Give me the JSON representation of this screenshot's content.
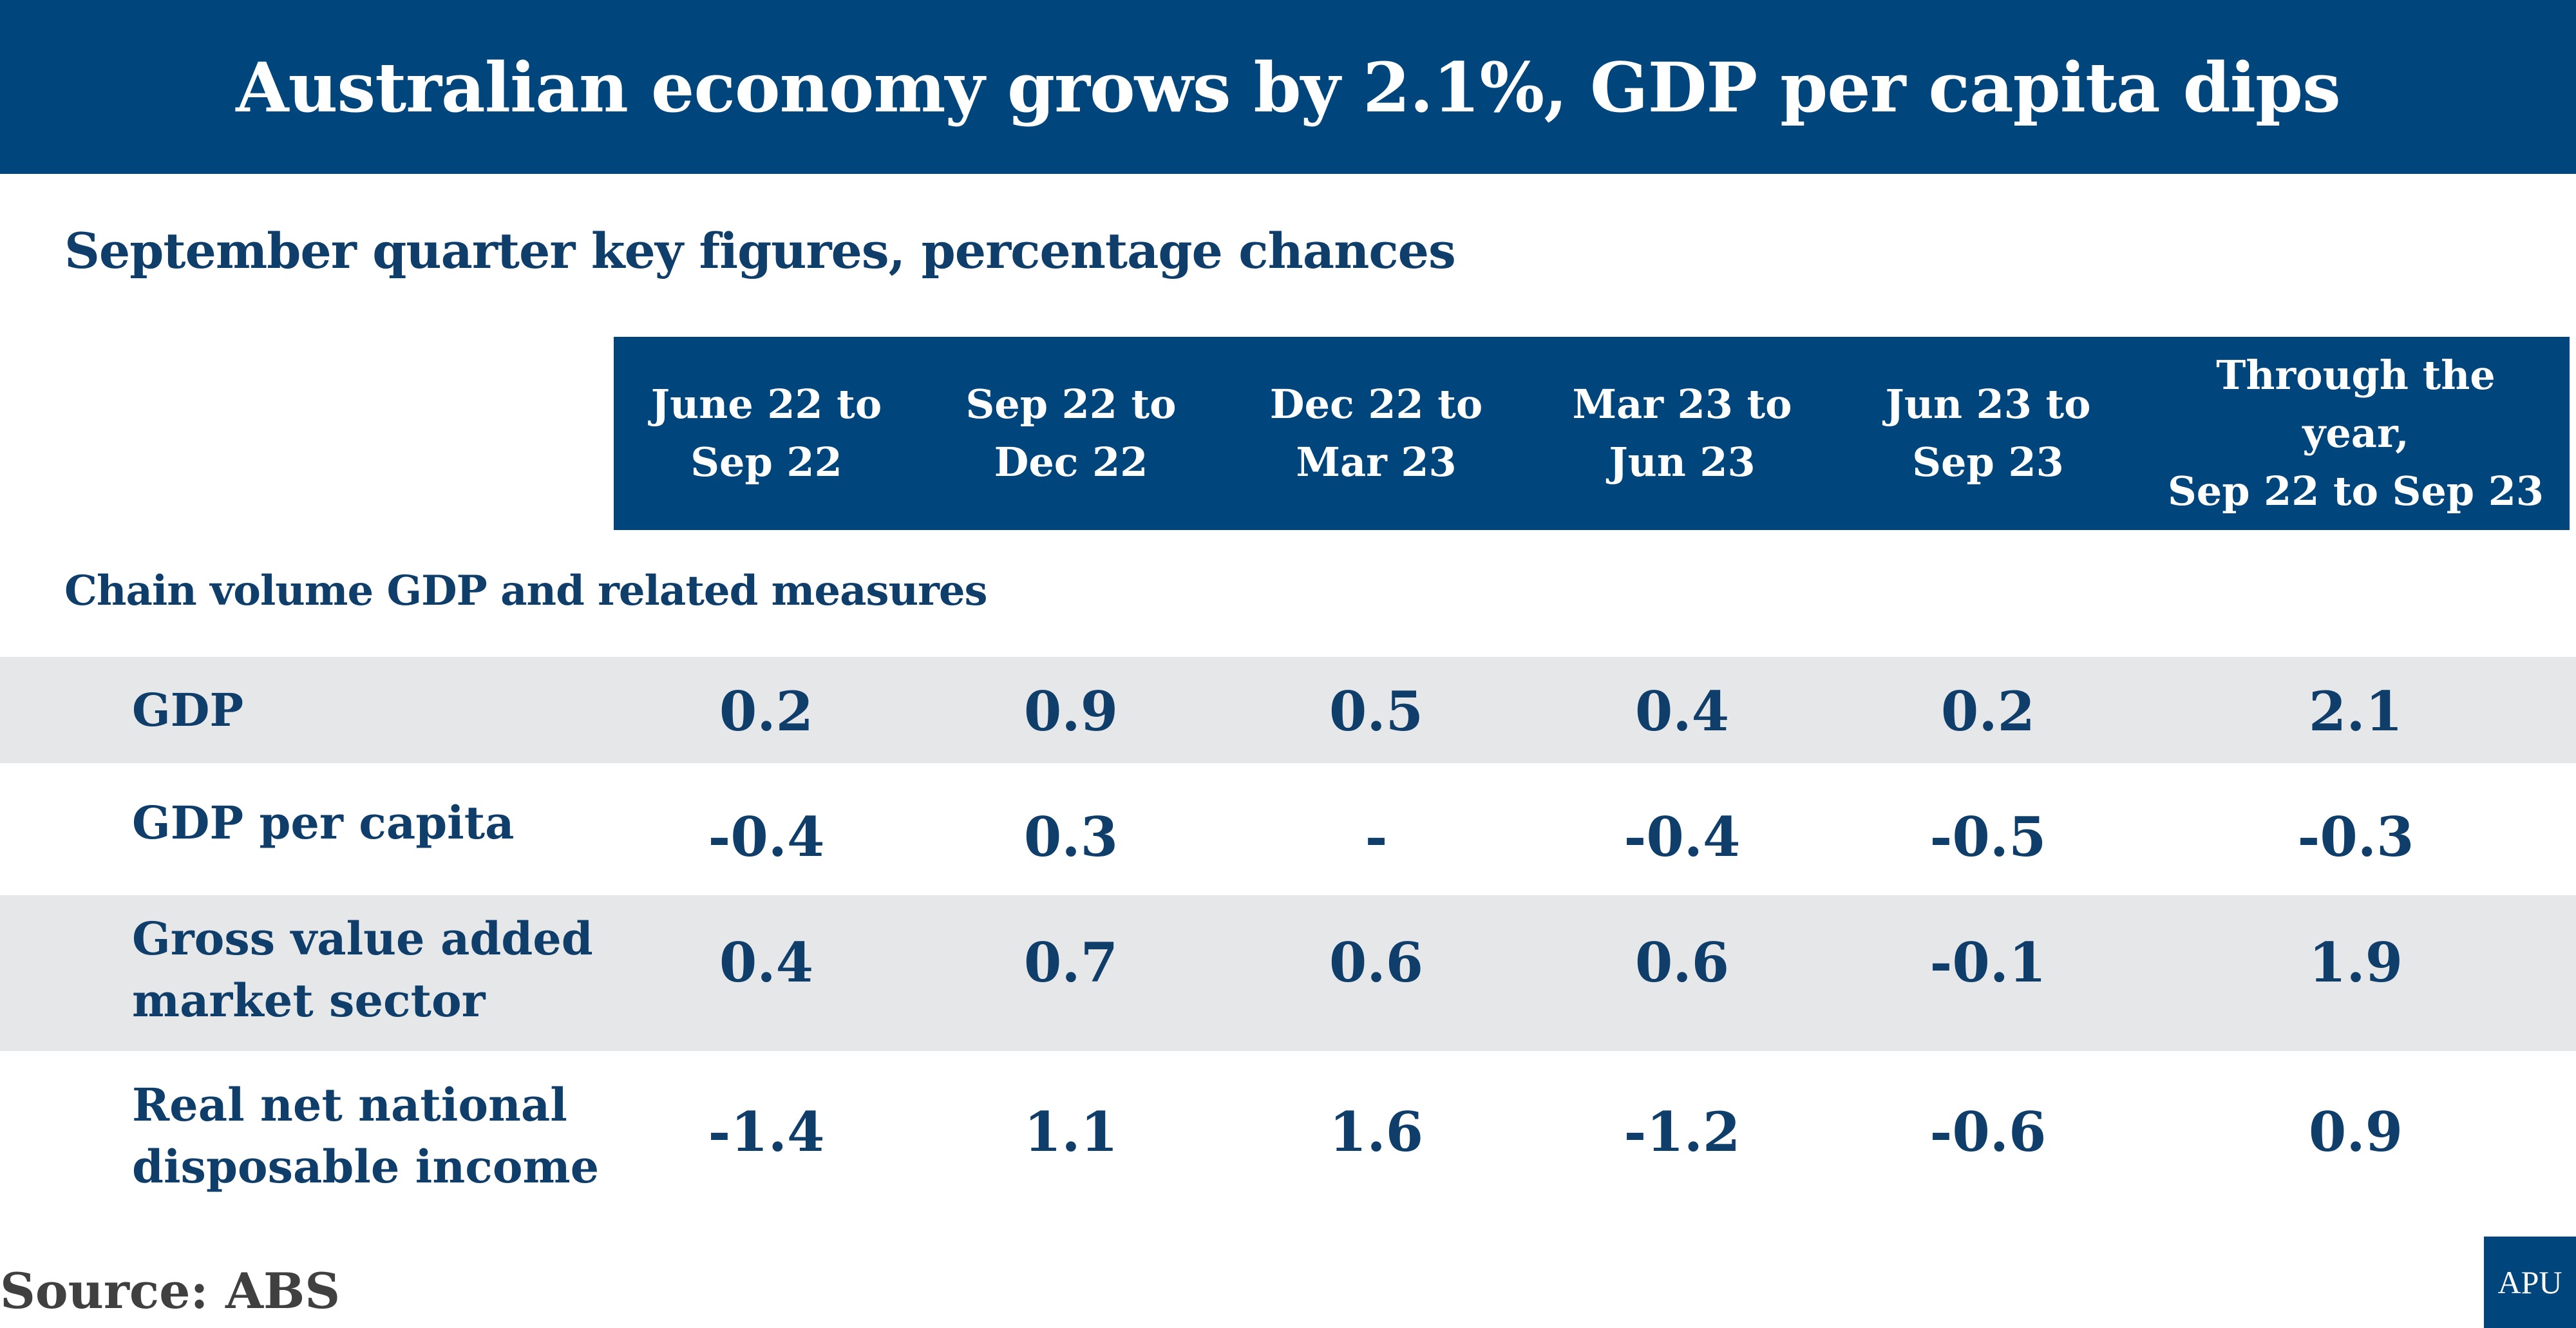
{
  "title": "Australian economy grows by 2.1%, GDP per capita dips",
  "subtitle": "September quarter key figures, percentage chances",
  "columns": [
    "June 22 to\nSep 22",
    "Sep 22 to\nDec 22",
    "Dec 22 to\nMar 23",
    "Mar 23 to\nJun 23",
    "Jun 23 to\nSep 23",
    "Through the year,\nSep 22 to Sep 23"
  ],
  "group_label": "Chain volume GDP and related measures",
  "rows": [
    {
      "label": "GDP",
      "values": [
        "0.2",
        "0.9",
        "0.5",
        "0.4",
        "0.2",
        "2.1"
      ]
    },
    {
      "label": "GDP per capita",
      "values": [
        "-0.4",
        "0.3",
        "-",
        "-0.4",
        "-0.5",
        "-0.3"
      ]
    },
    {
      "label": "Gross value added\nmarket sector",
      "values": [
        "0.4",
        "0.7",
        "0.6",
        "0.6",
        "-0.1",
        "1.9"
      ]
    },
    {
      "label": "Real net national\ndisposable income",
      "values": [
        "-1.4",
        "1.1",
        "1.6",
        "-1.2",
        "-0.6",
        "0.9"
      ]
    }
  ],
  "source": "Source: ABS",
  "logo": "APU",
  "colors": {
    "header_bg": "#00467c",
    "text": "#0f3e6b",
    "band": "#e6e7e9",
    "source_text": "#404040"
  },
  "chart_data": {
    "type": "table",
    "title": "Australian economy grows by 2.1%, GDP per capita dips",
    "subtitle": "September quarter key figures, percentage chances",
    "group": "Chain volume GDP and related measures",
    "columns": [
      "June 22 to Sep 22",
      "Sep 22 to Dec 22",
      "Dec 22 to Mar 23",
      "Mar 23 to Jun 23",
      "Jun 23 to Sep 23",
      "Through the year, Sep 22 to Sep 23"
    ],
    "rows": [
      {
        "label": "GDP",
        "values": [
          0.2,
          0.9,
          0.5,
          0.4,
          0.2,
          2.1
        ]
      },
      {
        "label": "GDP per capita",
        "values": [
          -0.4,
          0.3,
          null,
          -0.4,
          -0.5,
          -0.3
        ]
      },
      {
        "label": "Gross value added market sector",
        "values": [
          0.4,
          0.7,
          0.6,
          0.6,
          -0.1,
          1.9
        ]
      },
      {
        "label": "Real net national disposable income",
        "values": [
          -1.4,
          1.1,
          1.6,
          -1.2,
          -0.6,
          0.9
        ]
      }
    ],
    "source": "ABS"
  }
}
